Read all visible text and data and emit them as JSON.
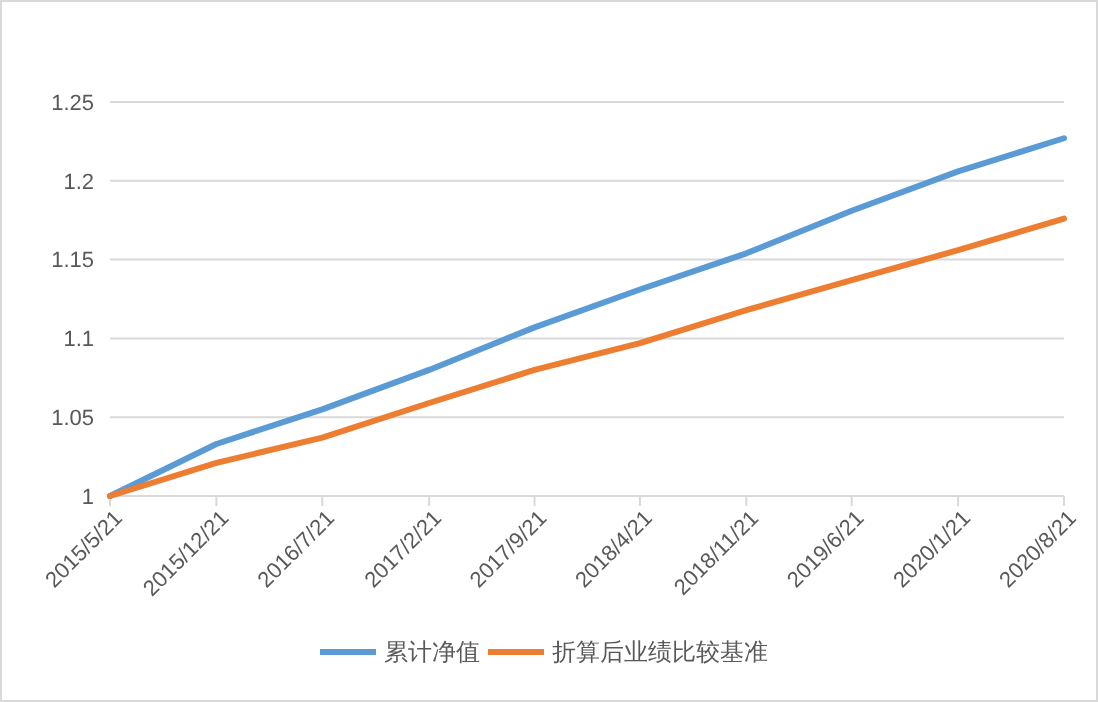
{
  "chart_data": {
    "type": "line",
    "x": [
      "2015-05-21",
      "2015-12-21",
      "2016-07-21",
      "2017-02-21",
      "2017-09-21",
      "2018-04-21",
      "2018-11-21",
      "2019-06-21",
      "2020-01-21",
      "2020-08-21"
    ],
    "series": [
      {
        "name": "累计净值",
        "color": "#5b9bd5",
        "values": [
          1,
          1.033,
          1.055,
          1.08,
          1.107,
          1.131,
          1.154,
          1.181,
          1.206,
          1.227
        ]
      },
      {
        "name": "折算后业绩比较基准",
        "color": "#ed7d31",
        "values": [
          1,
          1.021,
          1.037,
          1.059,
          1.08,
          1.097,
          1.118,
          1.137,
          1.156,
          1.176
        ]
      }
    ],
    "xlim": [
      "2015-05-21",
      "2020-08-21"
    ],
    "xticks": [
      {
        "value": "2015-05-21",
        "label": "2015/5/21"
      },
      {
        "value": "2015-12-21",
        "label": "2015/12/21"
      },
      {
        "value": "2016-07-21",
        "label": "2016/7/21"
      },
      {
        "value": "2017-02-21",
        "label": "2017/2/21"
      },
      {
        "value": "2017-09-21",
        "label": "2017/9/21"
      },
      {
        "value": "2018-04-21",
        "label": "2018/4/21"
      },
      {
        "value": "2018-11-21",
        "label": "2018/11/21"
      },
      {
        "value": "2019-06-21",
        "label": "2019/6/21"
      },
      {
        "value": "2020-01-21",
        "label": "2020/1/21"
      },
      {
        "value": "2020-08-21",
        "label": "2020/8/21"
      }
    ],
    "ylim": [
      1,
      1.25
    ],
    "yticks": [
      1,
      1.05,
      1.1,
      1.15,
      1.2,
      1.25
    ],
    "grid": "y",
    "legend": "bottom",
    "marker": "none",
    "line_style": "solid"
  }
}
